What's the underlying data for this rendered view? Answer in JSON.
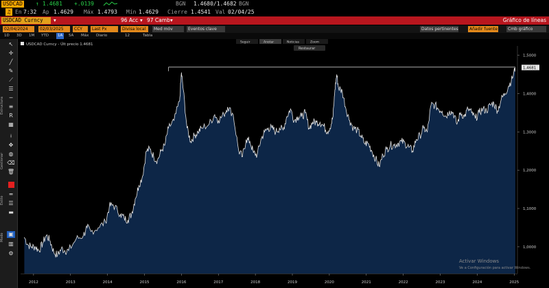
{
  "header": {
    "ticker": "USDCAD",
    "last_arrow": "↑",
    "last": "1.4681",
    "change": "+.0139",
    "bgn_label": "BGN",
    "bid_ask": "1.4680/1.4682",
    "bgn_label2": "BGN",
    "time_label": "En",
    "time": "7:32",
    "open_label": "Ap",
    "open": "1.4629",
    "high_label": "Máx",
    "high": "1.4793",
    "low_label": "Mín",
    "low": "1.4629",
    "close_label": "Cierre",
    "close": "1.4541",
    "val_label": "Val",
    "val_date": "02/04/25"
  },
  "redbar": {
    "security": "USDCAD Curncy",
    "menu1": "96 Acc",
    "menu2": "97 Camb",
    "chart_type": "Gráfico de líneas"
  },
  "controls": {
    "start_date": "02/04/2024",
    "end_date": "02/03/2025",
    "currency": "CCY",
    "field": "Last Px",
    "local_time": "Divisa local",
    "chart_items": "Med móv",
    "key_events": "Eventos clave",
    "relevant_data": "Datos pertinentes",
    "relevant_btn": "Añadir fuente",
    "chart_menu": "Cmb gráfico"
  },
  "periods": [
    "1D",
    "3D",
    "1M",
    "YTD",
    "1A",
    "5A",
    "Máx",
    "Diario",
    "",
    "12",
    "",
    "Tabla"
  ],
  "periods_selected": "1A",
  "chart_toolbar": [
    "Seguir",
    "Anotar",
    "Noticias",
    "Zoom"
  ],
  "chart_toolbar_selected": "Anotar",
  "restore_label": "Restaurar",
  "toolbar": {
    "label1": "Estructura",
    "label2": "Gestionar",
    "label3": "Estilo",
    "label4": "Modo"
  },
  "legend": "USDCAD Curncy - Últ precio 1.4681",
  "watermark": {
    "line1": "Activar Windows",
    "line2": "Ve a Configuración para activar Windows."
  },
  "colors": {
    "background": "#000000",
    "area_fill": "#0d2647",
    "line": "#e6e6e6",
    "red_bar": "#b8161e",
    "amber": "#f7a600"
  },
  "chart_data": {
    "type": "area",
    "title": "",
    "xlabel": "",
    "ylabel": "",
    "x_ticks": [
      "2012",
      "2013",
      "2014",
      "2015",
      "2016",
      "2017",
      "2018",
      "2019",
      "2020",
      "2021",
      "2022",
      "2023",
      "2024",
      "2025"
    ],
    "y_ticks": [
      "1,0000",
      "1,1000",
      "1,2000",
      "1,3000",
      "1,4000",
      "1,5000"
    ],
    "ylim": [
      0.93,
      1.51
    ],
    "xlim": [
      2011.7,
      2025.1
    ],
    "last_price_label": "1,4681",
    "reference_level": 1.469,
    "grid": false,
    "legend_position": "top-left",
    "series": [
      {
        "name": "USDCAD Curncy",
        "x": [
          2011.8,
          2011.9,
          2012.0,
          2012.1,
          2012.2,
          2012.3,
          2012.4,
          2012.5,
          2012.6,
          2012.7,
          2012.8,
          2012.9,
          2013.0,
          2013.2,
          2013.4,
          2013.5,
          2013.6,
          2013.8,
          2014.0,
          2014.1,
          2014.2,
          2014.4,
          2014.5,
          2014.6,
          2014.7,
          2014.8,
          2014.9,
          2015.0,
          2015.1,
          2015.2,
          2015.3,
          2015.4,
          2015.5,
          2015.6,
          2015.7,
          2015.85,
          2016.0,
          2016.05,
          2016.1,
          2016.2,
          2016.3,
          2016.4,
          2016.5,
          2016.6,
          2016.8,
          2016.95,
          2017.05,
          2017.2,
          2017.3,
          2017.45,
          2017.6,
          2017.7,
          2017.8,
          2017.9,
          2018.0,
          2018.1,
          2018.2,
          2018.3,
          2018.4,
          2018.5,
          2018.6,
          2018.7,
          2018.8,
          2018.9,
          2019.0,
          2019.1,
          2019.2,
          2019.3,
          2019.4,
          2019.5,
          2019.6,
          2019.7,
          2019.8,
          2019.9,
          2020.0,
          2020.1,
          2020.15,
          2020.2,
          2020.25,
          2020.3,
          2020.4,
          2020.5,
          2020.6,
          2020.7,
          2020.8,
          2020.9,
          2021.0,
          2021.1,
          2021.2,
          2021.3,
          2021.4,
          2021.5,
          2021.6,
          2021.7,
          2021.8,
          2021.9,
          2022.0,
          2022.1,
          2022.2,
          2022.3,
          2022.4,
          2022.5,
          2022.6,
          2022.7,
          2022.8,
          2022.9,
          2023.0,
          2023.1,
          2023.2,
          2023.3,
          2023.4,
          2023.5,
          2023.6,
          2023.7,
          2023.8,
          2023.9,
          2024.0,
          2024.1,
          2024.2,
          2024.3,
          2024.4,
          2024.5,
          2024.6,
          2024.7,
          2024.8,
          2024.9,
          2025.0,
          2025.08
        ],
        "values": [
          1.025,
          1.005,
          1.0,
          1.0,
          0.99,
          1.01,
          1.03,
          1.015,
          0.985,
          0.978,
          0.995,
          0.99,
          0.99,
          1.02,
          1.03,
          1.05,
          1.04,
          1.05,
          1.065,
          1.105,
          1.11,
          1.085,
          1.075,
          1.07,
          1.085,
          1.125,
          1.16,
          1.185,
          1.25,
          1.255,
          1.235,
          1.225,
          1.25,
          1.265,
          1.31,
          1.33,
          1.38,
          1.455,
          1.41,
          1.31,
          1.275,
          1.29,
          1.3,
          1.31,
          1.32,
          1.345,
          1.33,
          1.345,
          1.365,
          1.345,
          1.25,
          1.235,
          1.28,
          1.275,
          1.245,
          1.24,
          1.28,
          1.3,
          1.31,
          1.31,
          1.3,
          1.31,
          1.305,
          1.34,
          1.36,
          1.33,
          1.34,
          1.34,
          1.35,
          1.31,
          1.325,
          1.325,
          1.325,
          1.315,
          1.3,
          1.32,
          1.34,
          1.41,
          1.45,
          1.415,
          1.405,
          1.36,
          1.33,
          1.31,
          1.305,
          1.29,
          1.27,
          1.27,
          1.25,
          1.23,
          1.21,
          1.24,
          1.255,
          1.265,
          1.265,
          1.27,
          1.275,
          1.27,
          1.26,
          1.25,
          1.28,
          1.29,
          1.31,
          1.3,
          1.37,
          1.37,
          1.36,
          1.355,
          1.34,
          1.355,
          1.35,
          1.32,
          1.35,
          1.34,
          1.36,
          1.35,
          1.335,
          1.35,
          1.36,
          1.355,
          1.37,
          1.375,
          1.355,
          1.385,
          1.4,
          1.42,
          1.44,
          1.4681
        ]
      }
    ]
  }
}
